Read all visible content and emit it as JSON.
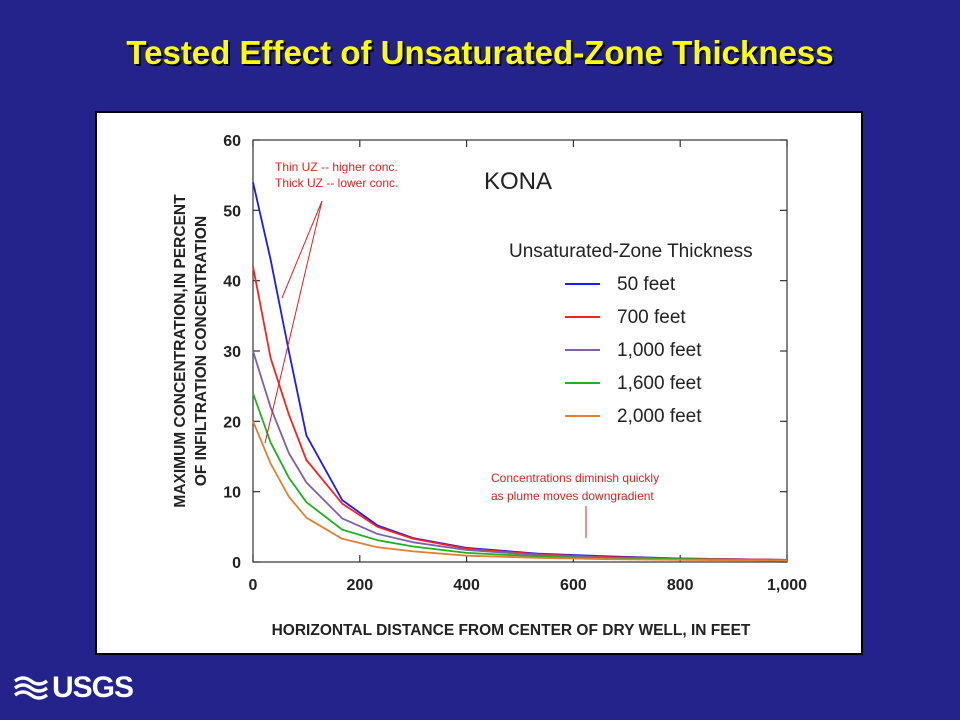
{
  "slide": {
    "title": "Tested Effect of Unsaturated-Zone Thickness",
    "logo_text": "USGS"
  },
  "chart_data": {
    "type": "line",
    "title": "KONA",
    "xlabel": "HORIZONTAL DISTANCE FROM CENTER OF DRY WELL, IN FEET",
    "ylabel_lines": [
      "MAXIMUM CONCENTRATION,IN PERCENT",
      "OF INFILTRATION CONCENTRATION"
    ],
    "xlim": [
      0,
      1000
    ],
    "ylim": [
      0,
      60
    ],
    "x_ticks": [
      0,
      200,
      400,
      600,
      800,
      1000
    ],
    "x_tick_labels": [
      "0",
      "200",
      "400",
      "600",
      "800",
      "1,000"
    ],
    "y_ticks": [
      0,
      10,
      20,
      30,
      40,
      50,
      60
    ],
    "y_tick_labels": [
      "0",
      "10",
      "20",
      "30",
      "40",
      "50",
      "60"
    ],
    "grid": false,
    "legend": {
      "title": "Unsaturated-Zone Thickness",
      "placement": "right"
    },
    "x": [
      0,
      33,
      67,
      100,
      167,
      233,
      300,
      400,
      533,
      667,
      800,
      1000
    ],
    "series": [
      {
        "name": "50 feet",
        "color": "#1a1aff",
        "values": [
          54,
          43,
          30,
          18,
          8.8,
          5.2,
          3.4,
          2.0,
          1.2,
          0.8,
          0.5,
          0.3
        ]
      },
      {
        "name": "700 feet",
        "color": "#ff2020",
        "values": [
          42,
          29,
          21,
          14.5,
          8.3,
          5.0,
          3.3,
          1.9,
          1.1,
          0.7,
          0.5,
          0.3
        ]
      },
      {
        "name": "1,000 feet",
        "color": "#8060a8",
        "values": [
          30,
          22,
          15.5,
          11.3,
          6.2,
          4.0,
          2.8,
          1.7,
          1.0,
          0.6,
          0.4,
          0.3
        ]
      },
      {
        "name": "1,600 feet",
        "color": "#20b020",
        "values": [
          24,
          17,
          12,
          8.5,
          4.6,
          3.1,
          2.2,
          1.3,
          0.8,
          0.5,
          0.4,
          0.2
        ]
      },
      {
        "name": "2,000 feet",
        "color": "#e08030",
        "values": [
          20,
          14,
          9.3,
          6.3,
          3.3,
          2.1,
          1.5,
          0.9,
          0.6,
          0.4,
          0.3,
          0.2
        ]
      }
    ],
    "annotations": [
      {
        "lines": [
          "Thin UZ -- higher conc.",
          "Thick UZ -- lower conc."
        ],
        "color": "#e02020"
      },
      {
        "lines": [
          "Concentrations diminish quickly",
          "as plume moves downgradient"
        ],
        "color": "#e02020"
      }
    ]
  }
}
